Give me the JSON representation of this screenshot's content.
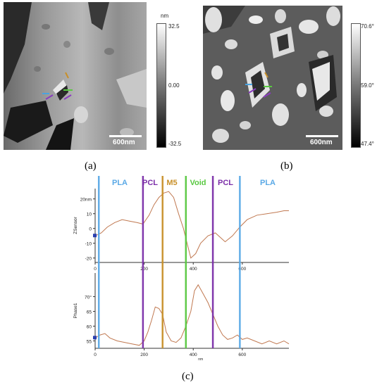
{
  "panels": {
    "a": {
      "label": "(a)",
      "unit": "nm",
      "cbar_max": "32.5",
      "cbar_mid": "0.00",
      "cbar_min": "-32.5",
      "scale_text": "600nm"
    },
    "b": {
      "label": "(b)",
      "unit": "",
      "cbar_max": "70.6°",
      "cbar_mid": "59.0°",
      "cbar_min": "47.4°",
      "scale_text": "600nm"
    },
    "c": {
      "label": "(c)"
    }
  },
  "colors": {
    "trace": "#c07850",
    "pla": "#5aa9e6",
    "pcl": "#7b2ea8",
    "m5": "#c8902a",
    "void": "#58c840",
    "axis": "#333333"
  },
  "chart_data": {
    "type": "line",
    "x_unit": "nm",
    "x_ticks": [
      "0",
      "200",
      "400",
      "600"
    ],
    "xlim": [
      0,
      790
    ],
    "regions": [
      {
        "label": "PLA",
        "color_key": "pla"
      },
      {
        "label": "PCL",
        "color_key": "pcl"
      },
      {
        "label": "M5",
        "color_key": "m5"
      },
      {
        "label": "Void",
        "color_key": "void"
      },
      {
        "label": "PCL",
        "color_key": "pcl"
      },
      {
        "label": "PLA",
        "color_key": "pla"
      }
    ],
    "boundaries": [
      {
        "x": 15,
        "color_key": "pla"
      },
      {
        "x": 195,
        "color_key": "pcl"
      },
      {
        "x": 275,
        "color_key": "m5"
      },
      {
        "x": 370,
        "color_key": "void"
      },
      {
        "x": 480,
        "color_key": "pcl"
      },
      {
        "x": 590,
        "color_key": "pla"
      }
    ],
    "top": {
      "ylabel": "ZSensor",
      "ylim": [
        -23,
        27
      ],
      "y_ticks": [
        {
          "v": 20,
          "t": "20nm"
        },
        {
          "v": 10,
          "t": "10"
        },
        {
          "v": 0,
          "t": "0"
        },
        {
          "v": -10,
          "t": "-10"
        },
        {
          "v": -20,
          "t": "-20"
        }
      ],
      "x": [
        0,
        25,
        50,
        80,
        110,
        140,
        170,
        195,
        220,
        240,
        260,
        280,
        300,
        320,
        340,
        360,
        375,
        390,
        410,
        430,
        460,
        490,
        510,
        530,
        560,
        590,
        620,
        660,
        700,
        740,
        770,
        790
      ],
      "y": [
        -5,
        -3,
        1,
        4,
        6,
        5,
        4,
        3,
        9,
        16,
        21,
        24,
        25,
        21,
        10,
        0,
        -10,
        -20,
        -17,
        -10,
        -5,
        -3,
        -6,
        -9,
        -5,
        1,
        6,
        9,
        10,
        11,
        12,
        12
      ]
    },
    "bottom": {
      "ylabel": "Phase1",
      "ylim": [
        52.5,
        78
      ],
      "y_ticks": [
        {
          "v": 70,
          "t": "70°"
        },
        {
          "v": 65,
          "t": "65"
        },
        {
          "v": 60,
          "t": "60"
        },
        {
          "v": 55,
          "t": "55"
        }
      ],
      "x": [
        0,
        20,
        40,
        60,
        90,
        120,
        150,
        180,
        200,
        215,
        230,
        245,
        260,
        275,
        290,
        310,
        330,
        350,
        370,
        390,
        405,
        420,
        440,
        460,
        480,
        500,
        520,
        540,
        560,
        580,
        600,
        620,
        650,
        680,
        710,
        740,
        770,
        790
      ],
      "y": [
        56,
        57,
        57.5,
        56,
        55,
        54.5,
        54,
        53.5,
        55,
        58,
        62,
        66.5,
        66,
        64,
        58,
        55,
        54.5,
        56,
        60,
        65,
        72,
        74,
        71,
        68,
        64,
        60,
        57,
        55.5,
        56,
        57,
        55.5,
        56,
        55,
        54,
        55,
        54,
        55,
        54
      ]
    }
  }
}
